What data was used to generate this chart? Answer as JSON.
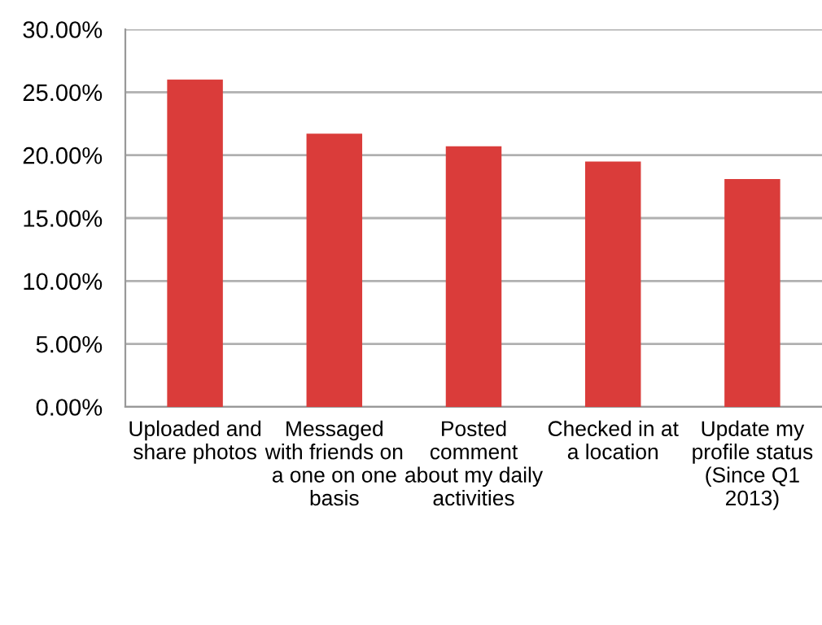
{
  "chart_data": {
    "type": "bar",
    "categories": [
      "Uploaded and\nshare photos",
      "Messaged\nwith friends on\na one on one\nbasis",
      "Posted\ncomment\nabout my daily\nactivities",
      "Checked in at\na location",
      "Update my\nprofile status\n(Since Q1\n2013)"
    ],
    "values": [
      26.0,
      21.7,
      20.7,
      19.5,
      18.1
    ],
    "color": "#da3c3a",
    "ylim": [
      0,
      30
    ],
    "yticks": [
      {
        "value": 0,
        "label": "0.00%"
      },
      {
        "value": 5,
        "label": "5.00%"
      },
      {
        "value": 10,
        "label": "10.00%"
      },
      {
        "value": 15,
        "label": "15.00%"
      },
      {
        "value": 20,
        "label": "20.00%"
      },
      {
        "value": 25,
        "label": "25.00%"
      },
      {
        "value": 30,
        "label": "30.00%"
      }
    ],
    "grid": "y"
  }
}
